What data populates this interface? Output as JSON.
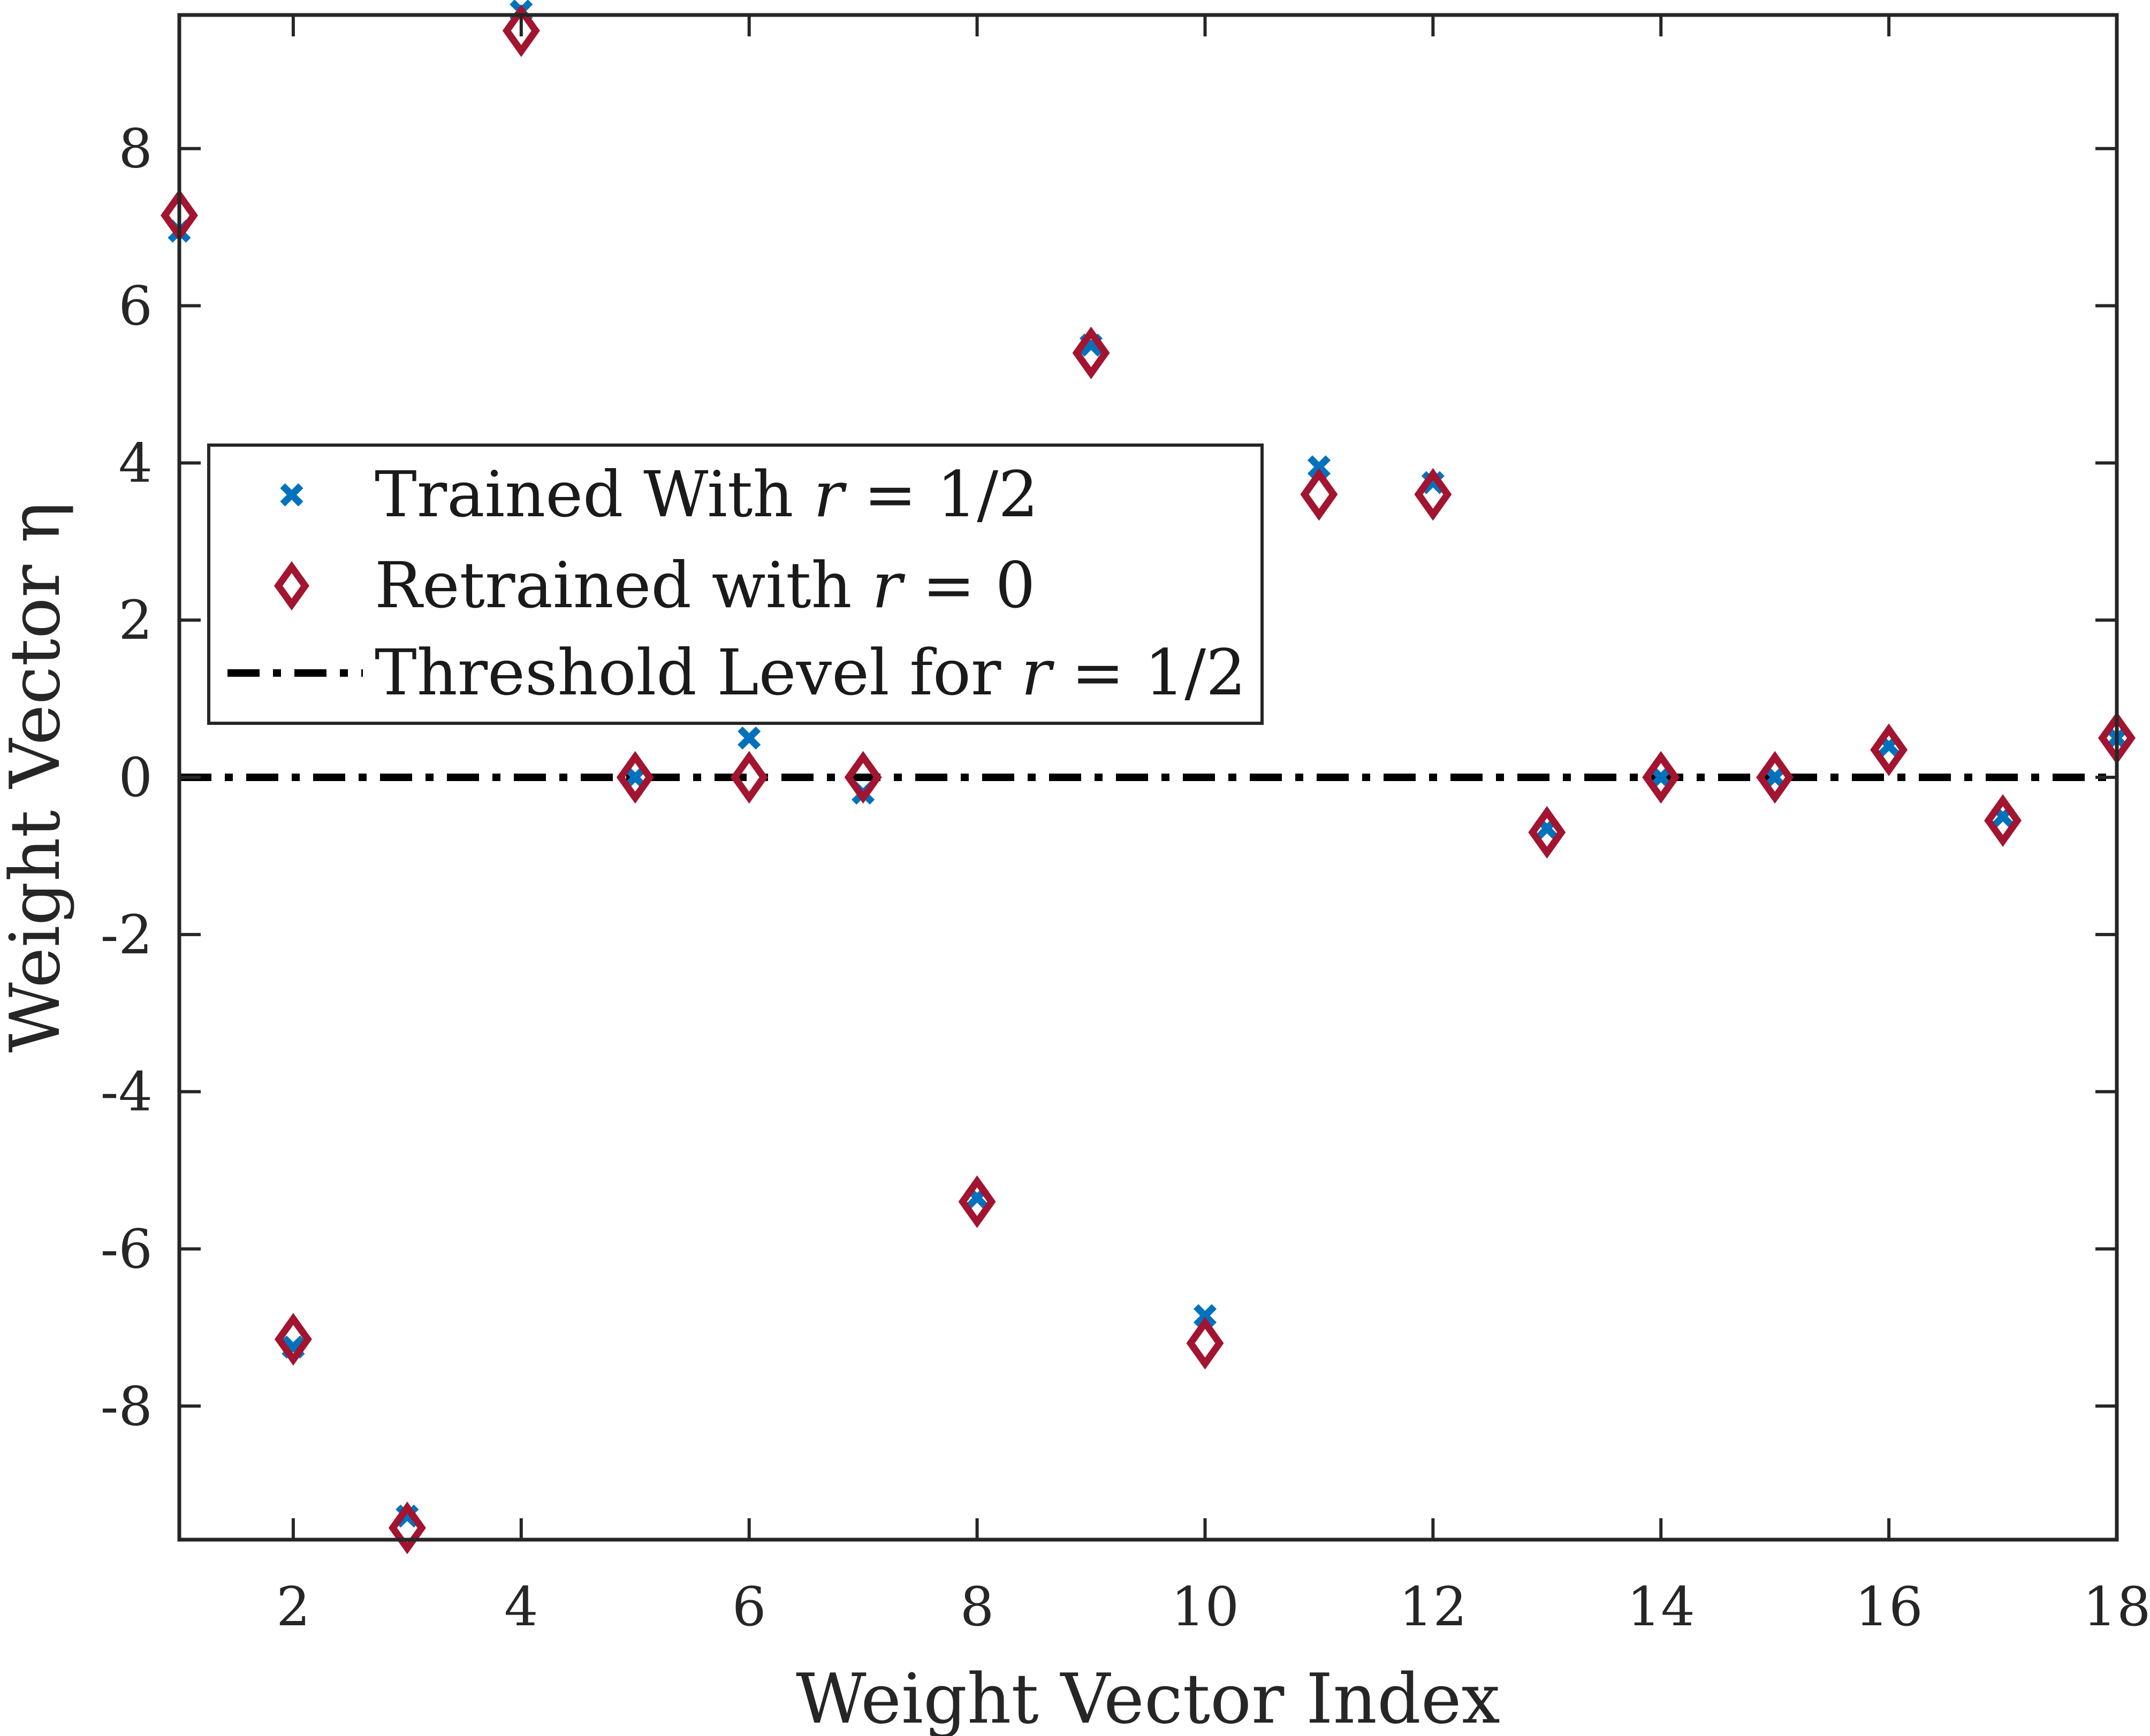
{
  "chart_data": {
    "type": "scatter",
    "title": "",
    "xlabel": "Weight Vector Index",
    "ylabel": "Weight Vector η",
    "xlim": [
      1,
      18
    ],
    "ylim": [
      -9.7,
      9.7
    ],
    "xticks": [
      2,
      4,
      6,
      8,
      10,
      12,
      14,
      16,
      18
    ],
    "xtick_labels": [
      "2",
      "4",
      "6",
      "8",
      "10",
      "12",
      "14",
      "16",
      "18"
    ],
    "yticks": [
      8,
      6,
      4,
      2,
      0,
      -2,
      -4,
      -6,
      -8
    ],
    "ytick_labels": [
      "8",
      "6",
      "4",
      "2",
      "0",
      "-2",
      "-4",
      "-6",
      "-8"
    ],
    "grid": false,
    "legend_position": "center-left",
    "series": [
      {
        "name": "Trained With r = 1/2",
        "marker": "x",
        "color": "#0072BD",
        "x": [
          1,
          2,
          3,
          4,
          5,
          6,
          7,
          8,
          9,
          10,
          11,
          12,
          13,
          14,
          15,
          16,
          17,
          18
        ],
        "y": [
          6.95,
          -7.25,
          -9.4,
          9.75,
          0,
          0.5,
          -0.2,
          -5.35,
          5.5,
          -6.85,
          3.95,
          3.75,
          -0.65,
          0,
          0,
          0.4,
          -0.5,
          0.5
        ]
      },
      {
        "name": "Retrained with r = 0",
        "marker": "diamond",
        "color": "#A2142F",
        "x": [
          1,
          2,
          3,
          4,
          5,
          6,
          7,
          8,
          9,
          10,
          11,
          12,
          13,
          14,
          15,
          16,
          17,
          18
        ],
        "y": [
          7.15,
          -7.15,
          -9.55,
          9.5,
          0,
          0,
          0,
          -5.4,
          5.4,
          -7.2,
          3.6,
          3.6,
          -0.7,
          0,
          0,
          0.35,
          -0.55,
          0.5
        ]
      },
      {
        "name": "Threshold Level for r = 1/2",
        "style": "dash-dot",
        "color": "#000000",
        "y_value": 0
      }
    ],
    "legend": {
      "entries": [
        {
          "prefix": "Trained With ",
          "var": "r",
          "suffix": " = 1/2"
        },
        {
          "prefix": "Retrained with ",
          "var": "r",
          "suffix": " = 0"
        },
        {
          "prefix": "Threshold Level for ",
          "var": "r",
          "suffix": " = 1/2"
        }
      ]
    }
  }
}
